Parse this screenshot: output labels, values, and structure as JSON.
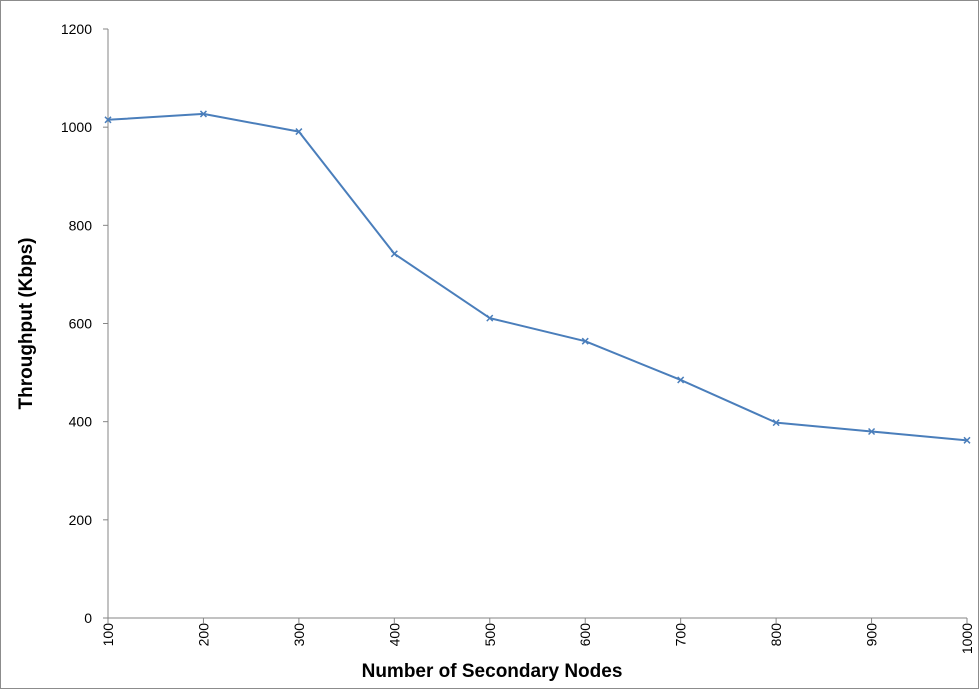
{
  "chart_data": {
    "type": "line",
    "title": "",
    "xlabel": "Number of Secondary Nodes",
    "ylabel": "Throughput (Kbps)",
    "x": [
      100,
      200,
      300,
      400,
      500,
      600,
      700,
      800,
      900,
      1000
    ],
    "x_tick_labels": [
      "100",
      "200",
      "300",
      "400",
      "500",
      "600",
      "700",
      "800",
      "900",
      "1000"
    ],
    "y_ticks": [
      0,
      200,
      400,
      600,
      800,
      1000,
      1200
    ],
    "y_tick_labels": [
      "0",
      "200",
      "400",
      "600",
      "800",
      "1000",
      "1200"
    ],
    "ylim": [
      0,
      1200
    ],
    "grid": false,
    "legend": "none",
    "series": [
      {
        "color": "#4a7ebb",
        "marker": "x",
        "values": [
          1015,
          1027,
          991,
          742,
          611,
          564,
          485,
          398,
          380,
          362
        ]
      }
    ]
  }
}
